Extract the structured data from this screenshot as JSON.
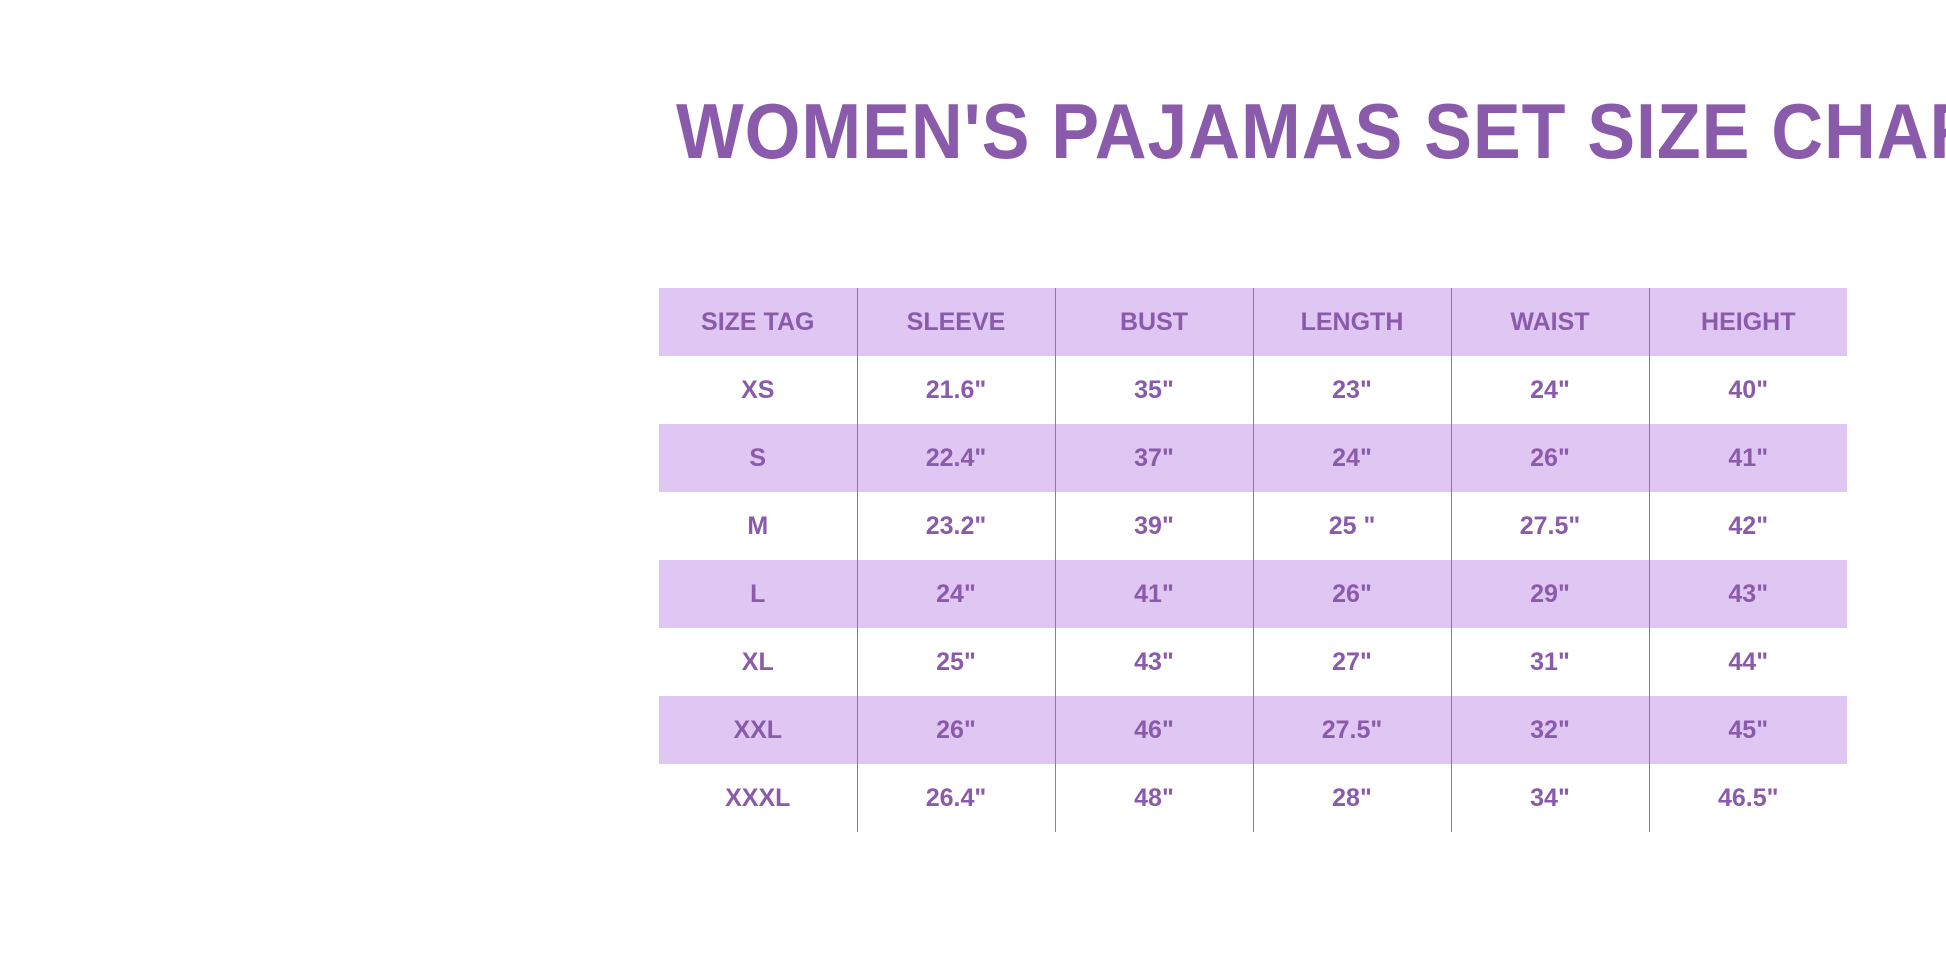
{
  "title": "WOMEN'S PAJAMAS SET SIZE CHART",
  "colors": {
    "accent": "#8a5aab",
    "row_shade": "#e0c6f3"
  },
  "table": {
    "headers": [
      "SIZE TAG",
      "SLEEVE",
      "BUST",
      "LENGTH",
      "WAIST",
      "HEIGHT"
    ],
    "rows": [
      [
        "XS",
        "21.6\"",
        "35\"",
        "23\"",
        "24\"",
        "40\""
      ],
      [
        "S",
        "22.4\"",
        "37\"",
        "24\"",
        "26\"",
        "41\""
      ],
      [
        "M",
        "23.2\"",
        "39\"",
        "25 \"",
        "27.5\"",
        "42\""
      ],
      [
        "L",
        "24\"",
        "41\"",
        "26\"",
        "29\"",
        "43\""
      ],
      [
        "XL",
        "25\"",
        "43\"",
        "27\"",
        "31\"",
        "44\""
      ],
      [
        "XXL",
        "26\"",
        "46\"",
        "27.5\"",
        "32\"",
        "45\""
      ],
      [
        "XXXL",
        "26.4\"",
        "48\"",
        "28\"",
        "34\"",
        "46.5\""
      ]
    ]
  }
}
